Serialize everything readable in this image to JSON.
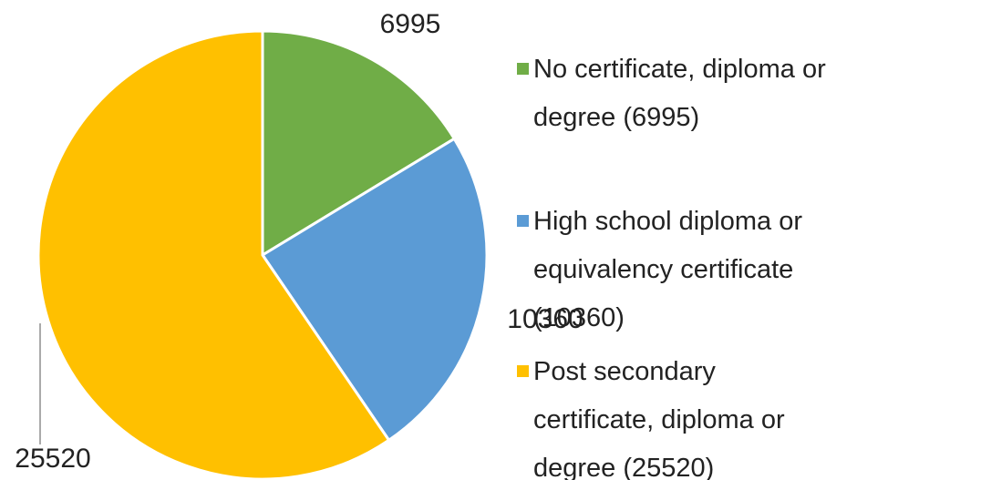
{
  "chart_data": {
    "type": "pie",
    "categories": [
      "No certificate, diploma or degree (6995)",
      "High school diploma or equivalency certificate (10360)",
      "Post secondary certificate, diploma or degree (25520)"
    ],
    "values": [
      6995,
      10360,
      25520
    ],
    "colors": [
      "#70ad47",
      "#5b9bd5",
      "#ffc000"
    ],
    "legend": "right"
  }
}
